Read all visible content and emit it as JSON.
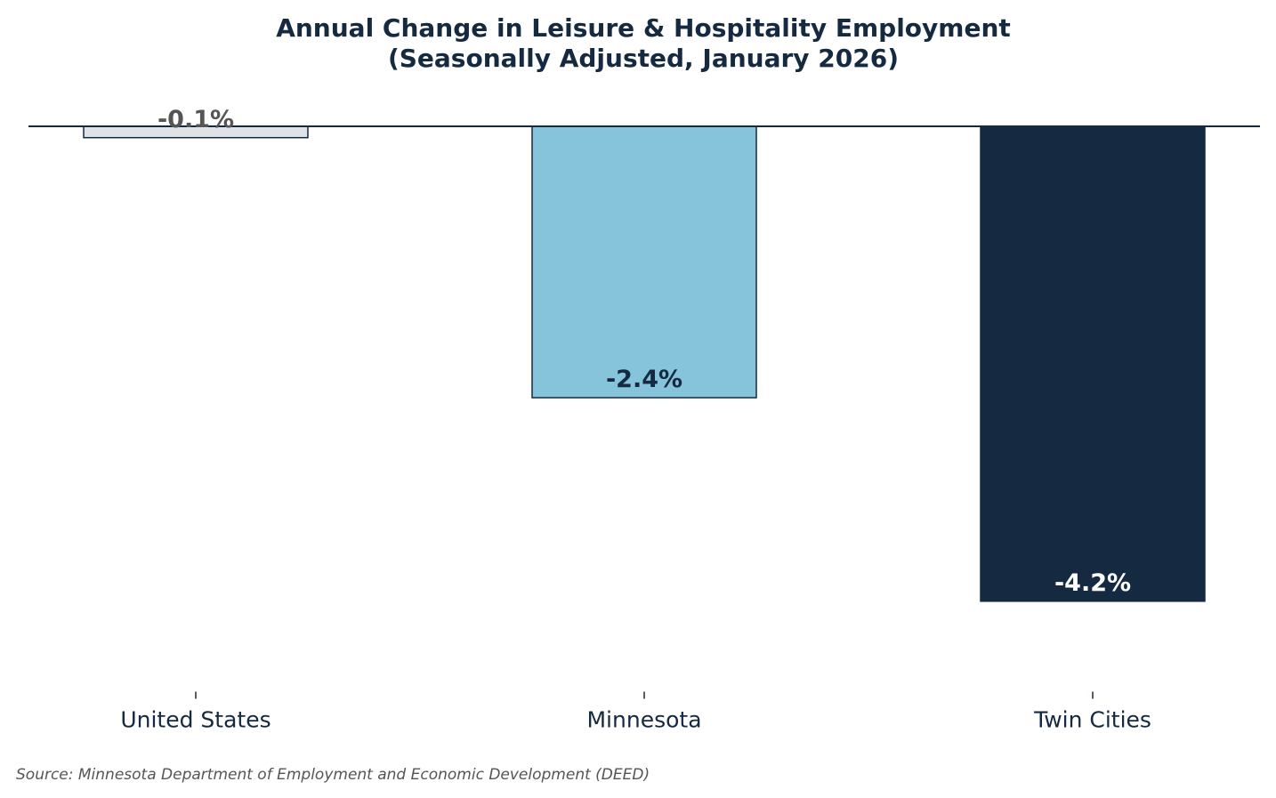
{
  "chart_data": {
    "type": "bar",
    "title_lines": [
      "Annual Change in Leisure & Hospitality Employment",
      "(Seasonally Adjusted, January 2026)"
    ],
    "categories": [
      "United States",
      "Minnesota",
      "Twin Cities"
    ],
    "values": [
      -0.1,
      -2.4,
      -4.2
    ],
    "data_labels": [
      "-0.1%",
      "-2.4%",
      "-4.2%"
    ],
    "colors": [
      "#dfe3e8",
      "#86c4dc",
      "#152a40"
    ],
    "label_colors": [
      "#555555",
      "#152a40",
      "#ffffff"
    ],
    "edge_color": "#152a40",
    "xlabel": "",
    "ylabel": "",
    "ylim": [
      -5.0,
      0.6
    ],
    "grid": false,
    "y_axis_visible": false,
    "zero_line": true,
    "source": "Source: Minnesota Department of Employment and Economic Development (DEED)"
  }
}
